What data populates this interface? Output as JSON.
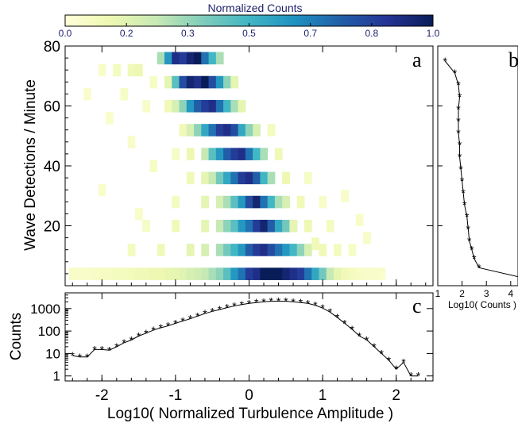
{
  "chart_data": [
    {
      "panel": "a",
      "type": "heatmap",
      "colorbar": {
        "title": "Normalized Counts",
        "ticks": [
          "0.0",
          "0.2",
          "0.3",
          "0.5",
          "0.7",
          "0.8",
          "1.0"
        ],
        "colors": [
          "#ffffd9",
          "#edf8b1",
          "#c7e9b4",
          "#7fcdbb",
          "#41b6c4",
          "#1d91c0",
          "#225ea8",
          "#253494",
          "#081d58"
        ]
      },
      "xlim": [
        -2.5,
        2.5
      ],
      "ylim": [
        0,
        80
      ],
      "xticks": [
        -2,
        -1,
        0,
        1,
        2
      ],
      "yticks": [
        20,
        40,
        60,
        80
      ],
      "ylabel": "Wave Detections / Minute",
      "note_cells": "Representative cells; approx values read from colour.",
      "cells": [
        [
          -2.4,
          4,
          0.05
        ],
        [
          -2.3,
          4,
          0.05
        ],
        [
          -2.2,
          4,
          0.05
        ],
        [
          -2.1,
          4,
          0.06
        ],
        [
          -2.0,
          4,
          0.07
        ],
        [
          -1.9,
          4,
          0.07
        ],
        [
          -1.8,
          4,
          0.08
        ],
        [
          -1.7,
          4,
          0.08
        ],
        [
          -1.6,
          4,
          0.09
        ],
        [
          -1.5,
          4,
          0.1
        ],
        [
          -1.4,
          4,
          0.1
        ],
        [
          -1.3,
          4,
          0.12
        ],
        [
          -1.2,
          4,
          0.12
        ],
        [
          -1.1,
          4,
          0.14
        ],
        [
          -1.0,
          4,
          0.15
        ],
        [
          -0.9,
          4,
          0.17
        ],
        [
          -0.8,
          4,
          0.2
        ],
        [
          -0.7,
          4,
          0.22
        ],
        [
          -0.6,
          4,
          0.25
        ],
        [
          -0.5,
          4,
          0.3
        ],
        [
          -0.4,
          4,
          0.35
        ],
        [
          -0.3,
          4,
          0.45
        ],
        [
          -0.2,
          4,
          0.6
        ],
        [
          -0.1,
          4,
          0.7
        ],
        [
          0.0,
          4,
          0.85
        ],
        [
          0.1,
          4,
          0.9
        ],
        [
          0.2,
          4,
          1.0
        ],
        [
          0.3,
          4,
          1.0
        ],
        [
          0.4,
          4,
          1.0
        ],
        [
          0.5,
          4,
          0.95
        ],
        [
          0.6,
          4,
          0.9
        ],
        [
          0.7,
          4,
          0.85
        ],
        [
          0.8,
          4,
          0.7
        ],
        [
          0.9,
          4,
          0.55
        ],
        [
          1.0,
          4,
          0.4
        ],
        [
          1.1,
          4,
          0.25
        ],
        [
          1.2,
          4,
          0.15
        ],
        [
          1.3,
          4,
          0.1
        ],
        [
          1.4,
          4,
          0.08
        ],
        [
          1.5,
          4,
          0.06
        ],
        [
          1.6,
          4,
          0.05
        ],
        [
          1.7,
          4,
          0.05
        ],
        [
          1.8,
          4,
          0.04
        ],
        [
          -1.6,
          12,
          0.08
        ],
        [
          -1.2,
          12,
          0.1
        ],
        [
          -0.8,
          12,
          0.15
        ],
        [
          -0.6,
          12,
          0.2
        ],
        [
          -0.4,
          12,
          0.3
        ],
        [
          -0.3,
          12,
          0.4
        ],
        [
          -0.2,
          12,
          0.5
        ],
        [
          -0.1,
          12,
          0.6
        ],
        [
          0.0,
          12,
          0.75
        ],
        [
          0.1,
          12,
          0.85
        ],
        [
          0.2,
          12,
          0.9
        ],
        [
          0.3,
          12,
          0.8
        ],
        [
          0.4,
          12,
          0.7
        ],
        [
          0.5,
          12,
          0.6
        ],
        [
          0.6,
          12,
          0.5
        ],
        [
          0.7,
          12,
          0.35
        ],
        [
          0.8,
          12,
          0.2
        ],
        [
          1.0,
          12,
          0.1
        ],
        [
          1.2,
          12,
          0.08
        ],
        [
          1.4,
          12,
          0.06
        ],
        [
          -1.4,
          20,
          0.06
        ],
        [
          -1.0,
          20,
          0.1
        ],
        [
          -0.6,
          20,
          0.15
        ],
        [
          -0.4,
          20,
          0.25
        ],
        [
          -0.3,
          20,
          0.35
        ],
        [
          -0.2,
          20,
          0.45
        ],
        [
          -0.1,
          20,
          0.6
        ],
        [
          0.0,
          20,
          0.7
        ],
        [
          0.1,
          20,
          0.85
        ],
        [
          0.2,
          20,
          0.95
        ],
        [
          0.3,
          20,
          0.75
        ],
        [
          0.4,
          20,
          0.55
        ],
        [
          0.5,
          20,
          0.4
        ],
        [
          0.6,
          20,
          0.3
        ],
        [
          0.8,
          20,
          0.12
        ],
        [
          1.1,
          20,
          0.08
        ],
        [
          -1.0,
          28,
          0.08
        ],
        [
          -0.6,
          28,
          0.15
        ],
        [
          -0.4,
          28,
          0.2
        ],
        [
          -0.3,
          28,
          0.3
        ],
        [
          -0.2,
          28,
          0.45
        ],
        [
          -0.1,
          28,
          0.6
        ],
        [
          0.0,
          28,
          0.8
        ],
        [
          0.1,
          28,
          0.95
        ],
        [
          0.2,
          28,
          0.7
        ],
        [
          0.3,
          28,
          0.5
        ],
        [
          0.4,
          28,
          0.3
        ],
        [
          0.5,
          28,
          0.2
        ],
        [
          0.7,
          28,
          0.1
        ],
        [
          1.0,
          28,
          0.05
        ],
        [
          -0.8,
          36,
          0.1
        ],
        [
          -0.6,
          36,
          0.15
        ],
        [
          -0.5,
          36,
          0.25
        ],
        [
          -0.4,
          36,
          0.4
        ],
        [
          -0.3,
          36,
          0.55
        ],
        [
          -0.2,
          36,
          0.7
        ],
        [
          -0.1,
          36,
          0.85
        ],
        [
          0.0,
          36,
          0.9
        ],
        [
          0.1,
          36,
          0.75
        ],
        [
          0.2,
          36,
          0.5
        ],
        [
          0.3,
          36,
          0.3
        ],
        [
          0.5,
          36,
          0.12
        ],
        [
          0.8,
          36,
          0.06
        ],
        [
          -1.0,
          44,
          0.06
        ],
        [
          -0.8,
          44,
          0.12
        ],
        [
          -0.6,
          44,
          0.25
        ],
        [
          -0.5,
          44,
          0.45
        ],
        [
          -0.4,
          44,
          0.6
        ],
        [
          -0.3,
          44,
          0.75
        ],
        [
          -0.2,
          44,
          0.85
        ],
        [
          -0.1,
          44,
          0.9
        ],
        [
          0.0,
          44,
          0.7
        ],
        [
          0.1,
          44,
          0.5
        ],
        [
          0.2,
          44,
          0.3
        ],
        [
          0.4,
          44,
          0.1
        ],
        [
          -0.9,
          52,
          0.1
        ],
        [
          -0.8,
          52,
          0.2
        ],
        [
          -0.7,
          52,
          0.35
        ],
        [
          -0.6,
          52,
          0.55
        ],
        [
          -0.5,
          52,
          0.7
        ],
        [
          -0.4,
          52,
          0.85
        ],
        [
          -0.3,
          52,
          0.9
        ],
        [
          -0.2,
          52,
          0.8
        ],
        [
          -0.1,
          52,
          0.55
        ],
        [
          0.0,
          52,
          0.35
        ],
        [
          0.1,
          52,
          0.2
        ],
        [
          0.3,
          52,
          0.08
        ],
        [
          -1.4,
          60,
          0.05
        ],
        [
          -1.1,
          60,
          0.1
        ],
        [
          -1.0,
          60,
          0.2
        ],
        [
          -0.9,
          60,
          0.35
        ],
        [
          -0.8,
          60,
          0.6
        ],
        [
          -0.7,
          60,
          0.75
        ],
        [
          -0.6,
          60,
          0.85
        ],
        [
          -0.5,
          60,
          0.9
        ],
        [
          -0.4,
          60,
          0.7
        ],
        [
          -0.3,
          60,
          0.5
        ],
        [
          -0.2,
          60,
          0.3
        ],
        [
          -0.1,
          60,
          0.15
        ],
        [
          -1.3,
          68,
          0.06
        ],
        [
          -1.1,
          68,
          0.15
        ],
        [
          -1.0,
          68,
          0.45
        ],
        [
          -0.9,
          68,
          0.8
        ],
        [
          -0.8,
          68,
          0.95
        ],
        [
          -0.7,
          68,
          0.9
        ],
        [
          -0.6,
          68,
          1.0
        ],
        [
          -0.5,
          68,
          0.8
        ],
        [
          -0.4,
          68,
          0.6
        ],
        [
          -0.3,
          68,
          0.35
        ],
        [
          -0.2,
          68,
          0.15
        ],
        [
          -1.2,
          76,
          0.3
        ],
        [
          -1.1,
          76,
          0.6
        ],
        [
          -1.0,
          76,
          0.9
        ],
        [
          -0.9,
          76,
          0.85
        ],
        [
          -0.8,
          76,
          0.95
        ],
        [
          -0.7,
          76,
          1.0
        ],
        [
          -0.6,
          76,
          0.7
        ],
        [
          -0.5,
          76,
          0.5
        ],
        [
          -0.4,
          76,
          0.3
        ],
        [
          -2.0,
          72,
          0.05
        ],
        [
          -1.8,
          72,
          0.08
        ],
        [
          -1.6,
          72,
          0.1
        ],
        [
          -1.5,
          72,
          0.12
        ],
        [
          -2.2,
          64,
          0.04
        ],
        [
          -1.7,
          64,
          0.06
        ],
        [
          -1.9,
          56,
          0.04
        ],
        [
          -1.6,
          48,
          0.05
        ],
        [
          -1.3,
          40,
          0.06
        ],
        [
          -2.0,
          32,
          0.04
        ],
        [
          -1.5,
          24,
          0.05
        ],
        [
          0.6,
          20,
          0.15
        ],
        [
          0.9,
          14,
          0.1
        ],
        [
          1.3,
          30,
          0.05
        ],
        [
          1.5,
          22,
          0.05
        ],
        [
          1.6,
          16,
          0.05
        ]
      ]
    },
    {
      "panel": "b",
      "type": "line",
      "xlabel": "Log10( Counts )",
      "xticks": [
        1,
        2,
        3,
        4
      ],
      "xlim": [
        1,
        4.3
      ],
      "ylim": [
        0,
        80
      ],
      "x": [
        1.3,
        1.7,
        1.85,
        1.9,
        1.85,
        1.85,
        1.85,
        1.9,
        1.9,
        1.95,
        2.0,
        2.05,
        2.1,
        2.2,
        2.25,
        2.3,
        2.4,
        2.5,
        2.7,
        4.3
      ],
      "y": [
        75,
        71,
        67,
        63,
        59,
        55,
        51,
        47,
        43,
        39,
        35,
        31,
        27,
        23,
        19,
        15,
        12,
        9,
        6,
        3
      ]
    },
    {
      "panel": "c",
      "type": "line",
      "xlabel": "Log10( Normalized Turbulence Amplitude )",
      "ylabel": "Counts",
      "yscale": "log",
      "yticks": [
        1,
        10,
        100,
        1000
      ],
      "xticks": [
        -2,
        -1,
        0,
        1,
        2
      ],
      "xlim": [
        -2.5,
        2.5
      ],
      "x": [
        -2.4,
        -2.3,
        -2.2,
        -2.1,
        -2.0,
        -1.9,
        -1.8,
        -1.7,
        -1.6,
        -1.5,
        -1.4,
        -1.3,
        -1.2,
        -1.1,
        -1.0,
        -0.9,
        -0.8,
        -0.7,
        -0.6,
        -0.5,
        -0.4,
        -0.3,
        -0.2,
        -0.1,
        0.0,
        0.1,
        0.2,
        0.3,
        0.4,
        0.5,
        0.6,
        0.7,
        0.8,
        0.9,
        1.0,
        1.1,
        1.2,
        1.3,
        1.4,
        1.5,
        1.6,
        1.7,
        1.8,
        1.9,
        2.0,
        2.1,
        2.2,
        2.3
      ],
      "y": [
        8,
        7,
        7,
        15,
        15,
        14,
        20,
        30,
        40,
        60,
        80,
        110,
        140,
        170,
        220,
        280,
        350,
        460,
        600,
        750,
        900,
        1100,
        1300,
        1500,
        1700,
        1850,
        2000,
        2100,
        2150,
        2100,
        2000,
        1850,
        1700,
        1400,
        1050,
        700,
        400,
        220,
        120,
        60,
        40,
        20,
        10,
        5,
        2,
        4,
        1,
        1
      ]
    },
    {
      "panel_letters": [
        "a",
        "b",
        "c"
      ]
    }
  ]
}
